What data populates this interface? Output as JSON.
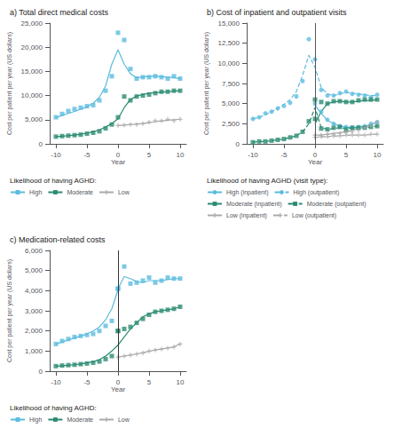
{
  "chart_data": [
    {
      "type": "line",
      "title": "a) Total direct medical costs",
      "xlabel": "Year",
      "ylabel": "Cost per patient per year (US dollars)",
      "legend_title": "Likelihood of having AGHD:",
      "legend": "below",
      "grid": false,
      "x": [
        -10,
        -9,
        -8,
        -7,
        -6,
        -5,
        -4,
        -3,
        -2,
        -1,
        0,
        1,
        2,
        3,
        4,
        5,
        6,
        7,
        8,
        9,
        10
      ],
      "xlim": [
        -11,
        11
      ],
      "xticks": [
        -10,
        -5,
        0,
        5,
        10
      ],
      "ylim": [
        0,
        25000
      ],
      "yticks": [
        0,
        {
          "value": 5000,
          "label": "5,000"
        },
        {
          "value": 10000,
          "label": "10,000"
        },
        {
          "value": 15000,
          "label": "15,000"
        },
        {
          "value": 20000,
          "label": "20,000"
        },
        {
          "value": 25000,
          "label": "25,000"
        }
      ],
      "series": [
        {
          "name": "High",
          "color": "#5BBCDE",
          "marker": "square",
          "line_style": "solid",
          "values": [
            5400,
            5900,
            6300,
            6700,
            7200,
            7700,
            8400,
            9600,
            12000,
            16500,
            19500,
            16500,
            14500,
            13700,
            13800,
            14000,
            14000,
            13900,
            13800,
            13700,
            13500
          ],
          "scatter_values": [
            5500,
            6200,
            6800,
            7200,
            7500,
            7800,
            8000,
            9000,
            11000,
            14000,
            23000,
            21500,
            15500,
            13500,
            13800,
            13800,
            14000,
            13800,
            13500,
            14000,
            13500
          ]
        },
        {
          "name": "Moderate",
          "color": "#2A8B72",
          "marker": "square",
          "line_style": "solid",
          "values": [
            1500,
            1600,
            1700,
            1800,
            2000,
            2200,
            2500,
            2900,
            3500,
            4200,
            5200,
            7500,
            9200,
            9900,
            10200,
            10500,
            10600,
            10700,
            10800,
            10900,
            11000
          ],
          "scatter_values": [
            1500,
            1600,
            1700,
            1800,
            1900,
            2100,
            2300,
            2600,
            3200,
            4000,
            5500,
            9800,
            9000,
            9800,
            10000,
            10200,
            10500,
            10800,
            10800,
            11000,
            11000
          ]
        },
        {
          "name": "Low",
          "color": "#AAAAAA",
          "marker": "plus",
          "line_style": "solid",
          "values": [
            null,
            null,
            null,
            null,
            null,
            null,
            null,
            null,
            null,
            null,
            3800,
            3900,
            4000,
            4100,
            4200,
            4400,
            4600,
            4700,
            4900,
            5000,
            5100
          ],
          "scatter_values": [
            null,
            null,
            null,
            null,
            null,
            null,
            null,
            null,
            null,
            null,
            3800,
            3900,
            4000,
            4000,
            4200,
            4500,
            4800,
            4800,
            5100,
            4800,
            5100
          ]
        }
      ]
    },
    {
      "type": "line",
      "title": "b) Cost of inpatient and outpatient visits",
      "xlabel": "Year",
      "ylabel": "Cost per patient per year (US dollars)",
      "legend_title": "Likelihood of having AGHD (visit type):",
      "legend": "below",
      "grid": false,
      "vline": {
        "x": 0,
        "color": "#555555"
      },
      "x": [
        -10,
        -9,
        -8,
        -7,
        -6,
        -5,
        -4,
        -3,
        -2,
        -1,
        0,
        1,
        2,
        3,
        4,
        5,
        6,
        7,
        8,
        9,
        10
      ],
      "xlim": [
        -11,
        11
      ],
      "xticks": [
        -10,
        -5,
        0,
        5,
        10
      ],
      "ylim": [
        0,
        15000
      ],
      "yticks": [
        0,
        {
          "value": 2500,
          "label": "2,500"
        },
        {
          "value": 5000,
          "label": "5,000"
        },
        {
          "value": 7500,
          "label": "7,500"
        },
        {
          "value": 10000,
          "label": "10,000"
        },
        {
          "value": 12500,
          "label": "12,500"
        },
        {
          "value": 15000,
          "label": "15,000"
        }
      ],
      "series": [
        {
          "name": "High (inpatient)",
          "color": "#5BBCDE",
          "marker": "circle",
          "line_style": "solid",
          "values": [
            null,
            null,
            null,
            null,
            null,
            null,
            null,
            null,
            null,
            null,
            4800,
            3800,
            2900,
            2500,
            2200,
            2100,
            2000,
            2100,
            2200,
            2400,
            2700
          ],
          "scatter_values": [
            null,
            null,
            null,
            null,
            null,
            null,
            null,
            null,
            null,
            null,
            5000,
            4000,
            3000,
            2500,
            2200,
            2100,
            2000,
            2100,
            2200,
            2500,
            2700
          ]
        },
        {
          "name": "High (outpatient)",
          "color": "#5BBCDE",
          "marker": "circle",
          "line_style": "dashed",
          "values": [
            3100,
            3300,
            3600,
            4000,
            4400,
            4900,
            5500,
            6500,
            8500,
            11000,
            9500,
            7000,
            6200,
            6000,
            6200,
            6400,
            6300,
            6200,
            6100,
            6000,
            6000
          ],
          "scatter_values": [
            3100,
            3300,
            3800,
            4000,
            4400,
            4700,
            5100,
            5900,
            7800,
            13000,
            10500,
            6700,
            6000,
            6000,
            6300,
            6500,
            6200,
            6100,
            6000,
            5800,
            6100
          ]
        },
        {
          "name": "Moderate (inpatient)",
          "color": "#2A8B72",
          "marker": "square",
          "line_style": "solid",
          "values": [
            null,
            null,
            null,
            null,
            null,
            null,
            null,
            null,
            null,
            null,
            2500,
            4000,
            5000,
            5200,
            5300,
            5200,
            5200,
            5300,
            5400,
            5400,
            5500
          ],
          "scatter_values": [
            null,
            null,
            null,
            null,
            null,
            null,
            null,
            null,
            null,
            null,
            3100,
            5200,
            5000,
            5300,
            5300,
            5200,
            5200,
            5400,
            5500,
            5500,
            5500
          ]
        },
        {
          "name": "Moderate (outpatient)",
          "color": "#2A8B72",
          "marker": "square",
          "line_style": "dashed",
          "values": [
            200,
            300,
            300,
            400,
            500,
            600,
            800,
            1000,
            1500,
            2500,
            4500,
            2000,
            1800,
            1900,
            2000,
            1900,
            2000,
            2000,
            2000,
            2100,
            2200
          ],
          "scatter_values": [
            200,
            300,
            300,
            400,
            500,
            600,
            800,
            1000,
            1500,
            2800,
            5500,
            1900,
            1800,
            2000,
            2100,
            1800,
            2000,
            2000,
            2000,
            2100,
            2200
          ]
        },
        {
          "name": "Low (inpatient)",
          "color": "#AAAAAA",
          "marker": "plus",
          "line_style": "solid",
          "values": [
            null,
            null,
            null,
            null,
            null,
            null,
            null,
            null,
            null,
            null,
            1100,
            1100,
            1200,
            1300,
            1400,
            1500,
            1700,
            1900,
            2100,
            2400,
            2700
          ],
          "scatter_values": [
            null,
            null,
            null,
            null,
            null,
            null,
            null,
            null,
            null,
            null,
            1100,
            1100,
            1200,
            1200,
            1300,
            1400,
            1500,
            1700,
            2000,
            2200,
            2700
          ]
        },
        {
          "name": "Low (outpatient)",
          "color": "#AAAAAA",
          "marker": "plus",
          "line_style": "dashed",
          "values": [
            null,
            null,
            null,
            null,
            null,
            null,
            null,
            null,
            null,
            null,
            800,
            850,
            900,
            950,
            1000,
            1050,
            1100,
            1100,
            1100,
            1150,
            1200
          ],
          "scatter_values": [
            null,
            null,
            null,
            null,
            null,
            null,
            null,
            null,
            null,
            null,
            800,
            900,
            900,
            1000,
            1000,
            1100,
            1100,
            1100,
            1100,
            1200,
            1200
          ]
        }
      ]
    },
    {
      "type": "line",
      "title": "c) Medication-related costs",
      "xlabel": "Year",
      "ylabel": "Cost per patient per year (US dollars)",
      "legend_title": "Likelihood of having AGHD:",
      "legend": "below",
      "grid": false,
      "vline": {
        "x": 0,
        "color": "#333333"
      },
      "xlim": [
        -11,
        11
      ],
      "xticks": [
        -10,
        -5,
        0,
        5,
        10
      ],
      "ylim": [
        0,
        6000
      ],
      "yticks": [
        0,
        {
          "value": 1000,
          "label": "1,000"
        },
        {
          "value": 2000,
          "label": "2,000"
        },
        {
          "value": 3000,
          "label": "3,000"
        },
        {
          "value": 4000,
          "label": "4,000"
        },
        {
          "value": 5000,
          "label": "5,000"
        },
        {
          "value": 6000,
          "label": "6,000"
        }
      ],
      "series": [
        {
          "name": "High",
          "color": "#5BBCDE",
          "marker": "square",
          "line_style": "solid",
          "segments": [
            {
              "x": [
                -10,
                -9,
                -8,
                -7,
                -6,
                -5,
                -4,
                -3,
                -2,
                -1,
                0
              ],
              "values": [
                1350,
                1450,
                1550,
                1650,
                1750,
                1850,
                2000,
                2200,
                2550,
                3100,
                4050
              ],
              "scatter_values": [
                1350,
                1500,
                1600,
                1700,
                1750,
                1800,
                1850,
                2000,
                2250,
                2500,
                4100
              ]
            },
            {
              "x": [
                0,
                1,
                2,
                3,
                4,
                5,
                6,
                7,
                8,
                9,
                10
              ],
              "values": [
                4100,
                4700,
                4600,
                4450,
                4400,
                4500,
                4500,
                4500,
                4550,
                4600,
                4600
              ],
              "scatter_values": [
                4100,
                5200,
                4350,
                4400,
                4500,
                4650,
                4400,
                4500,
                4650,
                4600,
                4600
              ]
            }
          ]
        },
        {
          "name": "Moderate",
          "color": "#2A8B72",
          "marker": "square",
          "line_style": "solid",
          "segments": [
            {
              "x": [
                -10,
                -9,
                -8,
                -7,
                -6,
                -5,
                -4,
                -3,
                -2,
                -1,
                0
              ],
              "values": [
                250,
                270,
                290,
                320,
                360,
                410,
                470,
                570,
                750,
                1000,
                1300
              ],
              "scatter_values": [
                250,
                280,
                300,
                320,
                350,
                380,
                420,
                480,
                600,
                750,
                2000
              ]
            },
            {
              "x": [
                0,
                1,
                2,
                3,
                4,
                5,
                6,
                7,
                8,
                9,
                10
              ],
              "values": [
                1300,
                1700,
                2100,
                2400,
                2700,
                2850,
                2950,
                3000,
                3050,
                3100,
                3200
              ],
              "scatter_values": [
                2000,
                2100,
                2200,
                2400,
                2600,
                2800,
                2950,
                3000,
                3050,
                3100,
                3200
              ]
            }
          ]
        },
        {
          "name": "Low",
          "color": "#AAAAAA",
          "marker": "plus",
          "line_style": "solid",
          "segments": [
            {
              "x": [
                0,
                1,
                2,
                3,
                4,
                5,
                6,
                7,
                8,
                9,
                10
              ],
              "values": [
                700,
                750,
                800,
                860,
                920,
                990,
                1050,
                1100,
                1150,
                1210,
                1350
              ],
              "scatter_values": [
                700,
                750,
                800,
                850,
                900,
                1000,
                1050,
                1100,
                1150,
                1200,
                1350
              ]
            }
          ]
        }
      ]
    }
  ]
}
